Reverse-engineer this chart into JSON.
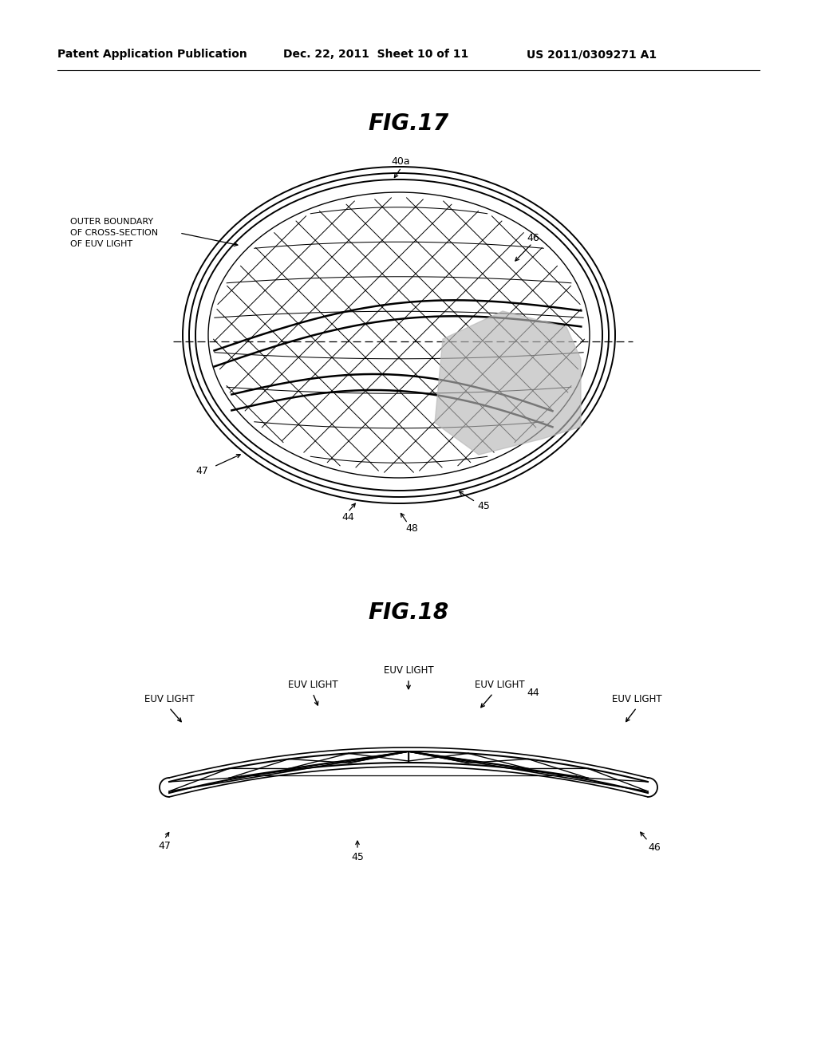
{
  "bg_color": "#ffffff",
  "header_left": "Patent Application Publication",
  "header_mid": "Dec. 22, 2011  Sheet 10 of 11",
  "header_right": "US 2011/0309271 A1",
  "fig17_title": "FIG.17",
  "fig18_title": "FIG.18",
  "label_40a": "40a",
  "label_46_top": "46",
  "label_47_top": "47",
  "label_44": "44",
  "label_45": "45",
  "label_48": "48",
  "label_outer_boundary_1": "OUTER BOUNDARY",
  "label_outer_boundary_2": "OF CROSS-SECTION",
  "label_outer_boundary_3": "OF EUV LIGHT",
  "label_47_bot": "47",
  "label_45_bot": "45",
  "label_46_bot": "46",
  "label_44_bot": "44"
}
